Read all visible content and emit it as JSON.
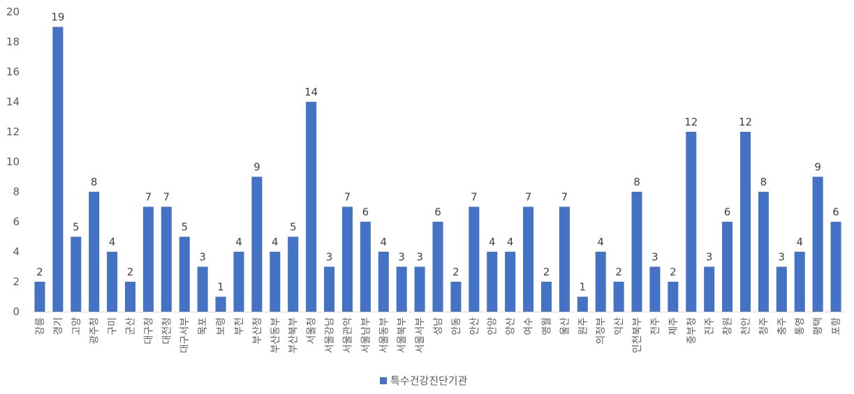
{
  "chart_data": {
    "type": "bar",
    "title": "",
    "xlabel": "",
    "ylabel": "",
    "ylim": [
      0,
      20
    ],
    "yticks": [
      0,
      2,
      4,
      6,
      8,
      10,
      12,
      14,
      16,
      18,
      20
    ],
    "grid": false,
    "legend_position": "bottom",
    "color": "#4472C4",
    "categories": [
      "강릉",
      "경기",
      "고양",
      "광주청",
      "구미",
      "군산",
      "대구청",
      "대전청",
      "대구서부",
      "목포",
      "보령",
      "부천",
      "부산청",
      "부산동부",
      "부산북부",
      "서울청",
      "서울강남",
      "서울관악",
      "서울남부",
      "서울동부",
      "서울북부",
      "서울서부",
      "성남",
      "안동",
      "안산",
      "안양",
      "양산",
      "여수",
      "영월",
      "울산",
      "원주",
      "의정부",
      "익산",
      "인천북부",
      "전주",
      "제주",
      "중부청",
      "진주",
      "창원",
      "천안",
      "청주",
      "충주",
      "통영",
      "평택",
      "포항"
    ],
    "series": [
      {
        "name": "특수건강진단기관",
        "values": [
          2,
          19,
          5,
          8,
          4,
          2,
          7,
          7,
          5,
          3,
          1,
          4,
          9,
          4,
          5,
          14,
          3,
          7,
          6,
          4,
          3,
          3,
          6,
          2,
          7,
          4,
          4,
          7,
          2,
          7,
          1,
          4,
          2,
          8,
          3,
          2,
          12,
          3,
          6,
          12,
          8,
          3,
          4,
          9,
          6
        ]
      }
    ]
  }
}
